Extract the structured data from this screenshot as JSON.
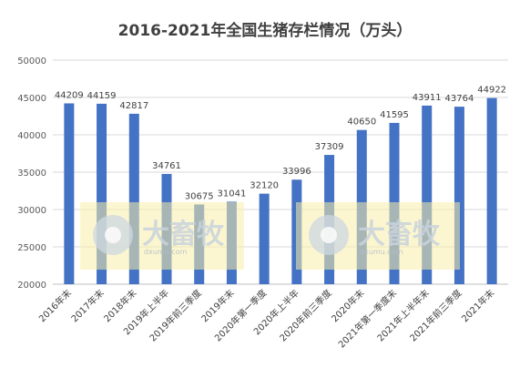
{
  "chart_data": {
    "type": "bar",
    "title": "2016-2021年全国生猪存栏情况（万头）",
    "categories": [
      "2016年末",
      "2017年末",
      "2018年末",
      "2019年上半年",
      "2019年前三季度",
      "2019年末",
      "2020年第一季度",
      "2020年上半年",
      "2020年前三季度",
      "2020年末",
      "2021年第一季度末",
      "2021年上半年末",
      "2021年前三季度",
      "2021年末"
    ],
    "series": [
      {
        "values": [
          44209,
          44159,
          42817,
          34761,
          30675,
          31041,
          32120,
          33996,
          37309,
          40650,
          41595,
          43911,
          43764,
          44922
        ]
      }
    ],
    "data_labels": [
      "44209",
      "44159",
      "42817",
      "34761",
      "30675",
      "31041",
      "32120",
      "33996",
      "37309",
      "40650",
      "41595",
      "43911",
      "43764",
      "44922"
    ],
    "ylim": [
      20000,
      50000
    ],
    "yticks": [
      20000,
      25000,
      30000,
      35000,
      40000,
      45000,
      50000
    ],
    "grid": true,
    "bar_color": "#4472C4"
  },
  "watermark": {
    "text": "大畜牧",
    "sub": "dxumu.com"
  }
}
